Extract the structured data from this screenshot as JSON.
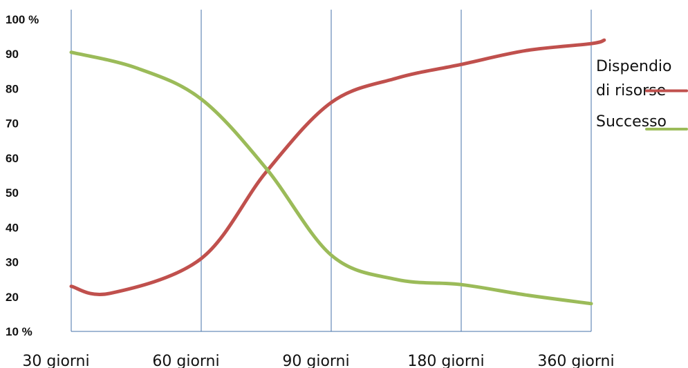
{
  "chart_data": {
    "type": "line",
    "title": "",
    "xlabel": "",
    "ylabel": "",
    "ylim": [
      10,
      100
    ],
    "y_tick_labels": [
      "100 %",
      "90",
      "80",
      "70",
      "60",
      "50",
      "40",
      "30",
      "20",
      "10 %"
    ],
    "y_tick_values": [
      100,
      90,
      80,
      70,
      60,
      50,
      40,
      30,
      20,
      10
    ],
    "categories": [
      "30 giorni",
      "60 giorni",
      "90 giorni",
      "180 giorni",
      "360 giorni"
    ],
    "vertical_grid": true,
    "legend_placement": "right",
    "series": [
      {
        "name": "Dispendio di risorse",
        "legend_lines": [
          "Dispendio",
          "di risorse"
        ],
        "color": "#c0504d",
        "x": [
          0,
          0.3,
          1,
          1.5,
          2,
          2.5,
          3,
          3.5,
          4,
          4.1
        ],
        "values": [
          23,
          21,
          31,
          56,
          76,
          83,
          87,
          91,
          93,
          94
        ]
      },
      {
        "name": "Successo",
        "legend_lines": [
          "Successo"
        ],
        "color": "#9bbb59",
        "x": [
          0,
          0.5,
          1,
          1.5,
          2,
          2.5,
          3,
          3.5,
          4
        ],
        "values": [
          90.5,
          86,
          77,
          57,
          32,
          25,
          23.5,
          20.5,
          18
        ]
      }
    ]
  }
}
